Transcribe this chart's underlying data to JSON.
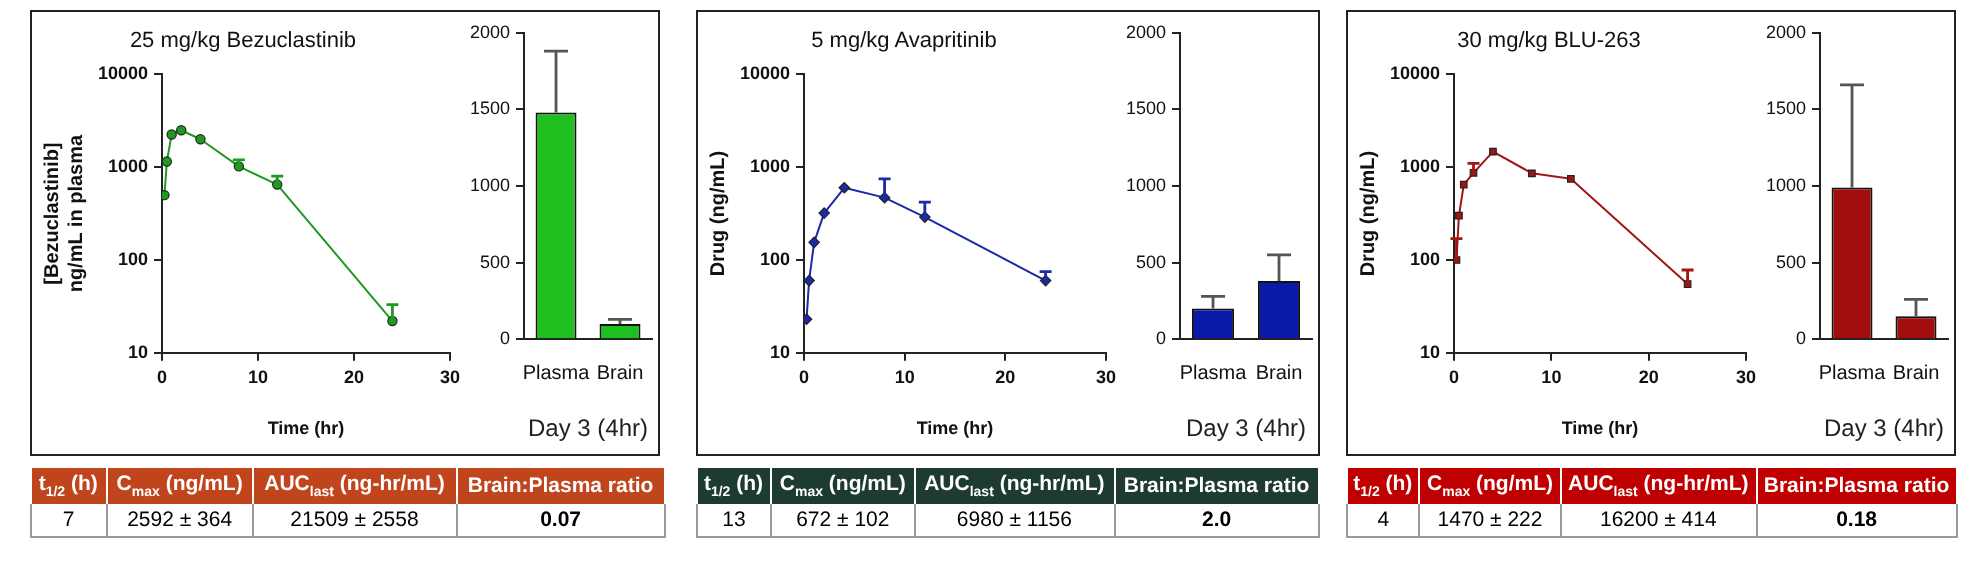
{
  "chart_data": [
    {
      "type": "line",
      "title": "25 mg/kg Bezuclastinib",
      "xlabel": "Time (hr)",
      "ylabel": "[Bezuclastinib] ng/mL in plasma",
      "x": [
        0.25,
        0.5,
        1,
        2,
        4,
        8,
        12,
        24
      ],
      "values": [
        500,
        1150,
        2250,
        2500,
        2000,
        1020,
        650,
        22
      ],
      "errors": [
        null,
        null,
        null,
        null,
        null,
        [
          1020,
          1200
        ],
        [
          650,
          800
        ],
        [
          22,
          33
        ]
      ],
      "color": "#1f9a1f",
      "marker": "circle",
      "log": "y",
      "xlim": [
        0,
        30
      ],
      "xticks": [
        0,
        10,
        20,
        30
      ],
      "ylim": [
        10,
        10000
      ],
      "yticks": [
        10,
        100,
        1000,
        10000
      ]
    },
    {
      "type": "bar",
      "xlabel": "Day 3 (4hr)",
      "categories": [
        "Plasma",
        "Brain"
      ],
      "values": [
        1480,
        100
      ],
      "errors": [
        [
          1480,
          1880
        ],
        [
          100,
          130
        ]
      ],
      "color": "#1fbf1f",
      "ylim": [
        0,
        2000
      ],
      "yticks": [
        0,
        500,
        1000,
        1500,
        2000
      ]
    },
    {
      "type": "other",
      "color": "#c0451c",
      "annotations": [
        "t$_{1/2}$ (h)",
        "C$_{max}$ (ng/mL)",
        "AUC$_{last}$ (ng-hr/mL)",
        "Brain:Plasma ratio",
        "7",
        "2592 ± 364",
        "21509 ± 2558",
        "0.07"
      ]
    },
    {
      "type": "line",
      "title": "5 mg/kg Avapritinib",
      "xlabel": "Time (hr)",
      "ylabel": "Drug (ng/mL)",
      "x": [
        0.25,
        0.5,
        1,
        2,
        4,
        8,
        12,
        24
      ],
      "values": [
        23,
        60,
        155,
        320,
        600,
        470,
        290,
        60
      ],
      "errors": [
        null,
        null,
        null,
        null,
        null,
        [
          470,
          750
        ],
        [
          290,
          420
        ],
        [
          60,
          75
        ]
      ],
      "color": "#1a2aa8",
      "marker": "diamond",
      "log": "y",
      "xlim": [
        0,
        30
      ],
      "xticks": [
        0,
        10,
        20,
        30
      ],
      "ylim": [
        10,
        10000
      ],
      "yticks": [
        10,
        100,
        1000,
        10000
      ]
    },
    {
      "type": "bar",
      "xlabel": "Day 3 (4hr)",
      "categories": [
        "Plasma",
        "Brain"
      ],
      "values": [
        200,
        380
      ],
      "errors": [
        [
          200,
          280
        ],
        [
          380,
          550
        ]
      ],
      "color": "#0a1aa8",
      "ylim": [
        0,
        2000
      ],
      "yticks": [
        0,
        500,
        1000,
        1500,
        2000
      ]
    },
    {
      "type": "other",
      "color": "#1e3b30",
      "annotations": [
        "t$_{1/2}$ (h)",
        "C$_{max}$ (ng/mL)",
        "AUC$_{last}$ (ng-hr/mL)",
        "Brain:Plasma ratio",
        "13",
        "672 ± 102",
        "6980 ± 1156",
        "2.0"
      ]
    },
    {
      "type": "line",
      "title": "30 mg/kg BLU-263",
      "xlabel": "Time (hr)",
      "ylabel": "Drug (ng/mL)",
      "x": [
        0.25,
        0.5,
        1,
        2,
        4,
        8,
        12,
        24
      ],
      "values": [
        100,
        300,
        650,
        870,
        1470,
        860,
        750,
        55
      ],
      "errors": [
        [
          100,
          170
        ],
        null,
        null,
        [
          870,
          1100
        ],
        null,
        null,
        null,
        [
          55,
          78
        ]
      ],
      "color": "#a31515",
      "marker": "square",
      "log": "y",
      "xlim": [
        0,
        30
      ],
      "xticks": [
        0,
        10,
        20,
        30
      ],
      "ylim": [
        10,
        10000
      ],
      "yticks": [
        10,
        100,
        1000,
        10000
      ]
    },
    {
      "type": "bar",
      "xlabel": "Day 3 (4hr)",
      "categories": [
        "Plasma",
        "Brain"
      ],
      "values": [
        990,
        150
      ],
      "errors": [
        [
          990,
          1660
        ],
        [
          150,
          260
        ]
      ],
      "color": "#a30d0d",
      "ylim": [
        0,
        2000
      ],
      "yticks": [
        0,
        500,
        1000,
        1500,
        2000
      ]
    },
    {
      "type": "other",
      "color": "#c00000",
      "annotations": [
        "t$_{1/2}$ (h)",
        "C$_{max}$ (ng/mL)",
        "AUC$_{last}$ (ng-hr/mL)",
        "Brain:Plasma ratio",
        "4",
        "1470 ± 222",
        "16200 ± 414",
        "0.18"
      ]
    }
  ]
}
